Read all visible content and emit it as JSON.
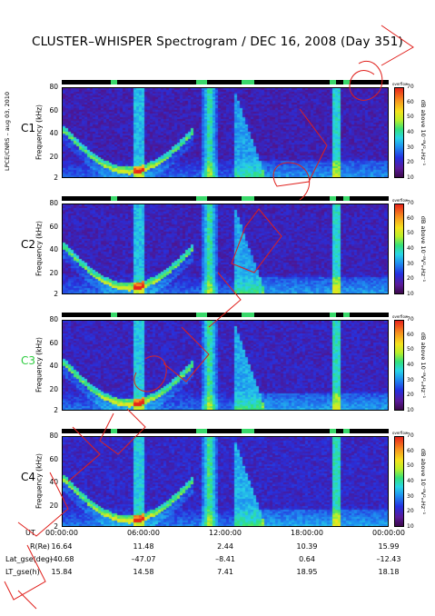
{
  "title": "CLUSTER–WHISPER Spectrogram / DEC 16, 2008 (Day 351)",
  "credit": "LPCE/CNRS – aug 03, 2010",
  "chart_data": {
    "type": "heatmap",
    "title": "CLUSTER–WHISPER Spectrogram / DEC 16, 2008 (Day 351)",
    "xlabel": "UT",
    "ylabel": "Frequency (kHz)",
    "ylim": [
      2,
      80
    ],
    "yticks": [
      "80",
      "60",
      "40",
      "20",
      "2"
    ],
    "xticks": [
      "00:00:00",
      "06:00:00",
      "12:00:00",
      "18:00:00",
      "00:00:00"
    ],
    "colorbar": {
      "label": "dB above 10⁻⁸V²ₘHz⁻¹",
      "ticks": [
        "70",
        "60",
        "50",
        "40",
        "30",
        "20",
        "10"
      ],
      "range": [
        10,
        70
      ],
      "top_text": "overflow"
    },
    "panels": [
      {
        "spacecraft": "C1",
        "label_color": "#000000"
      },
      {
        "spacecraft": "C2",
        "label_color": "#000000"
      },
      {
        "spacecraft": "C3",
        "label_color": "#2ecc40"
      },
      {
        "spacecraft": "C4",
        "label_color": "#000000"
      }
    ],
    "orbit_table": {
      "rows": [
        {
          "label": "R(Re)",
          "values": [
            "16.64",
            "11.48",
            "2.44",
            "10.39",
            "15.99"
          ]
        },
        {
          "label": "Lat_gse(deg)",
          "values": [
            "–40.68",
            "–47.07",
            "–8.41",
            "0.64",
            "–12.43"
          ]
        },
        {
          "label": "LT_gse(h)",
          "values": [
            "15.84",
            "14.58",
            "7.41",
            "18.95",
            "18.18"
          ]
        }
      ]
    },
    "grid": false
  }
}
